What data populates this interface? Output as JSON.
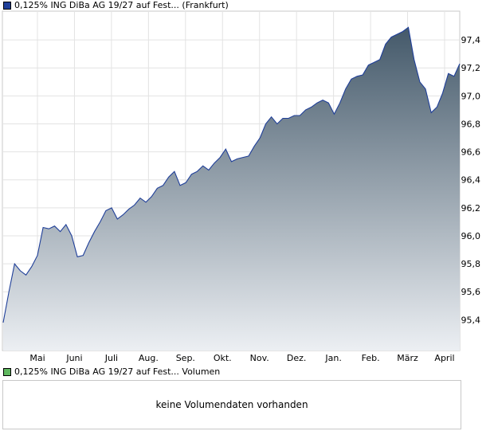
{
  "legend": {
    "price_label": "0,125% ING DiBa AG 19/27 auf Fest... (Frankfurt)",
    "volume_label": "0,125% ING DiBa AG 19/27 auf Fest... Volumen",
    "price_color": "#1f3f99",
    "volume_color": "#5fb85f"
  },
  "volume_panel": {
    "message": "keine Volumendaten vorhanden"
  },
  "chart_data": {
    "type": "area",
    "title": "0,125% ING DiBa AG 19/27 auf Fest... (Frankfurt)",
    "xlabel": "",
    "ylabel": "",
    "y_ticks": [
      "97,4",
      "97,2",
      "97,0",
      "96,8",
      "96,6",
      "96,4",
      "96,2",
      "96,0",
      "95,8",
      "95,6",
      "95,4"
    ],
    "y_tick_values": [
      97.4,
      97.2,
      97.0,
      96.8,
      96.6,
      96.4,
      96.2,
      96.0,
      95.8,
      95.6,
      95.4
    ],
    "ylim": [
      95.18,
      97.6
    ],
    "y_axis_position": "right",
    "grid": true,
    "x_ticks": [
      "Mai",
      "Juni",
      "Juli",
      "Aug.",
      "Sep.",
      "Okt.",
      "Nov.",
      "Dez.",
      "Jan.",
      "Feb.",
      "März",
      "April"
    ],
    "line_color": "#1f3f99",
    "fill_top_color": "#44596a",
    "fill_bottom_color": "#eceff3",
    "series": [
      {
        "values": [
          95.38,
          95.6,
          95.8,
          95.75,
          95.72,
          95.78,
          95.86,
          96.06,
          96.05,
          96.07,
          96.03,
          96.08,
          96.0,
          95.85,
          95.86,
          95.95,
          96.03,
          96.1,
          96.18,
          96.2,
          96.12,
          96.15,
          96.19,
          96.22,
          96.27,
          96.24,
          96.28,
          96.34,
          96.36,
          96.42,
          96.46,
          96.36,
          96.38,
          96.44,
          96.46,
          96.5,
          96.47,
          96.52,
          96.56,
          96.62,
          96.53,
          96.55,
          96.56,
          96.57,
          96.64,
          96.7,
          96.8,
          96.85,
          96.8,
          96.84,
          96.84,
          96.86,
          96.86,
          96.9,
          96.92,
          96.95,
          96.97,
          96.95,
          96.87,
          96.95,
          97.05,
          97.12,
          97.14,
          97.15,
          97.22,
          97.24,
          97.26,
          97.37,
          97.42,
          97.44,
          97.46,
          97.49,
          97.26,
          97.1,
          97.05,
          96.88,
          96.92,
          97.02,
          97.16,
          97.14,
          97.23
        ]
      }
    ]
  }
}
